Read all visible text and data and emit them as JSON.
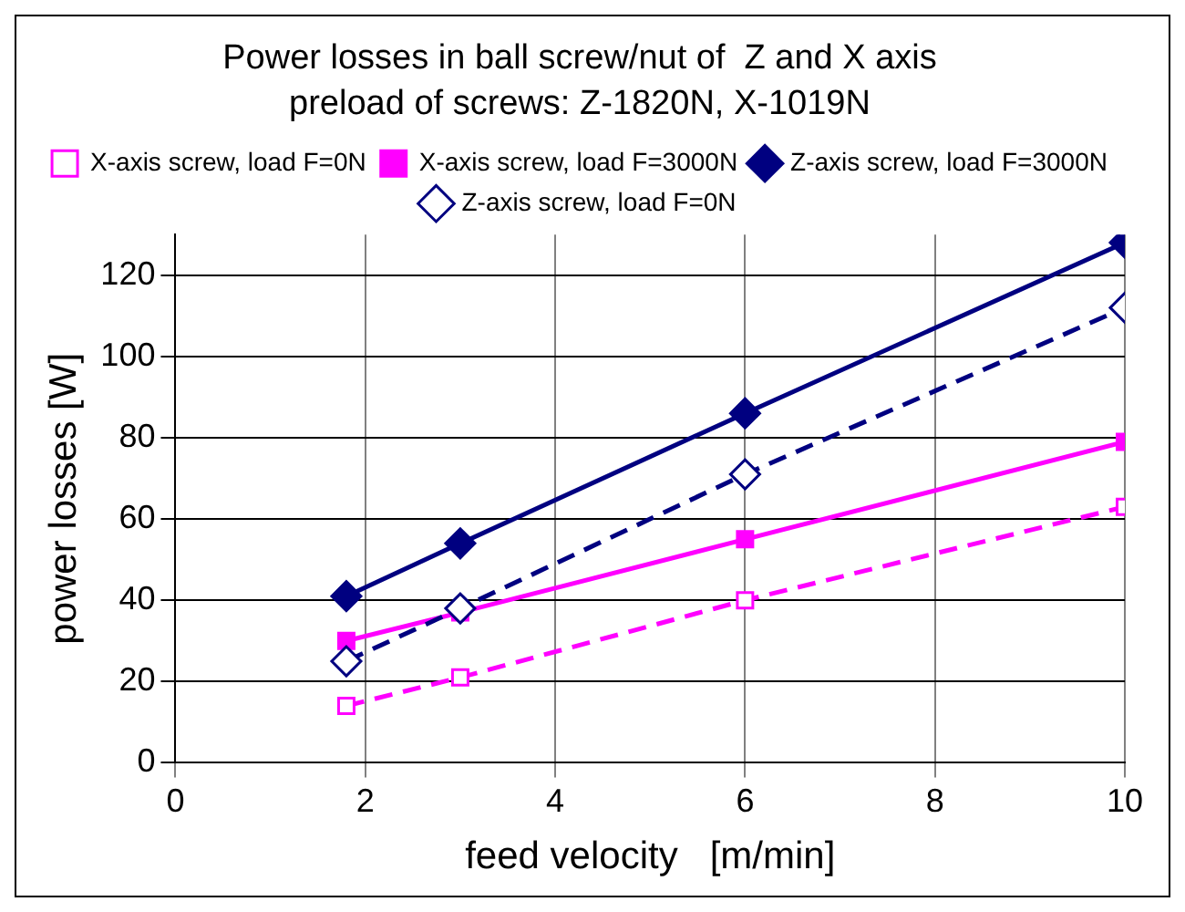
{
  "chart_data": {
    "type": "line",
    "title": "Power losses in ball screw/nut of  Z and X axis",
    "subtitle": "preload of screws: Z-1820N, X-1019N",
    "xlabel": "feed velocity   [m/min]",
    "ylabel": "power losses [W]",
    "x": [
      1.8,
      3,
      6,
      10
    ],
    "series": [
      {
        "name": "X-axis screw, load F=0N",
        "color": "#ff00ff",
        "values": [
          14,
          21,
          40,
          63
        ],
        "marker": "square",
        "line_style": "dashed"
      },
      {
        "name": "X-axis screw, load F=3000N",
        "color": "#ff00ff",
        "values": [
          30,
          37,
          55,
          79
        ],
        "marker": "square",
        "line_style": "solid"
      },
      {
        "name": "Z-axis screw, load F=3000N",
        "color": "#000080",
        "values": [
          41,
          54,
          86,
          128
        ],
        "marker": "diamond",
        "line_style": "solid"
      },
      {
        "name": "Z-axis screw, load F=0N",
        "color": "#000080",
        "values": [
          25,
          38,
          71,
          112
        ],
        "marker": "diamond",
        "line_style": "dashed"
      }
    ],
    "xlim": [
      0,
      10
    ],
    "xticks": [
      0,
      2,
      4,
      6,
      8,
      10
    ],
    "ylim": [
      0,
      130
    ],
    "yticks": [
      0,
      20,
      40,
      60,
      80,
      100,
      120
    ],
    "grid": true,
    "legend": "top"
  }
}
